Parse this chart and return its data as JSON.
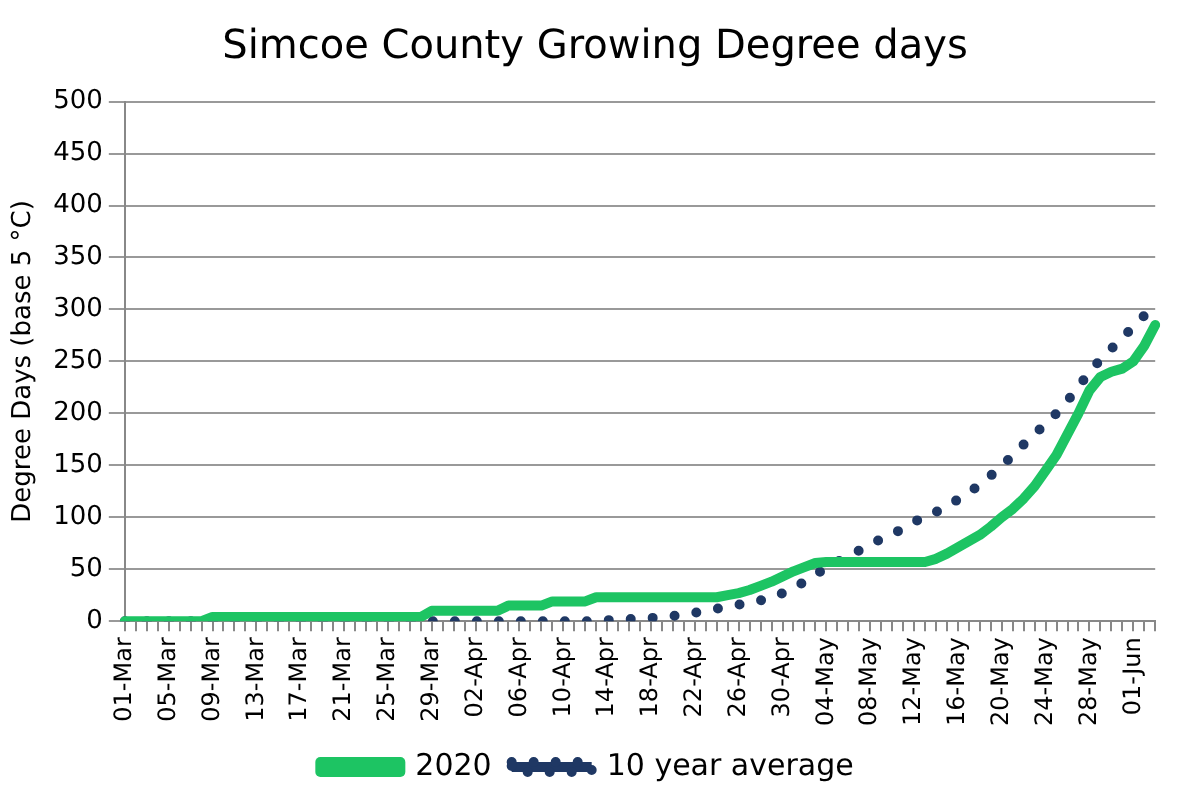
{
  "chart_data": {
    "type": "line",
    "title": "Simcoe County Growing Degree days",
    "ylabel": "Degree Days (base 5 °C)",
    "categories": [
      "01-Mar",
      null,
      null,
      null,
      "05-Mar",
      null,
      null,
      null,
      "09-Mar",
      null,
      null,
      null,
      "13-Mar",
      null,
      null,
      null,
      "17-Mar",
      null,
      null,
      null,
      "21-Mar",
      null,
      null,
      null,
      "25-Mar",
      null,
      null,
      null,
      "29-Mar",
      null,
      null,
      null,
      "02-Apr",
      null,
      null,
      null,
      "06-Apr",
      null,
      null,
      null,
      "10-Apr",
      null,
      null,
      null,
      "14-Apr",
      null,
      null,
      null,
      "18-Apr",
      null,
      null,
      null,
      "22-Apr",
      null,
      null,
      null,
      "26-Apr",
      null,
      null,
      null,
      "30-Apr",
      null,
      null,
      null,
      "04-May",
      null,
      null,
      null,
      "08-May",
      null,
      null,
      null,
      "12-May",
      null,
      null,
      null,
      "16-May",
      null,
      null,
      null,
      "20-May",
      null,
      null,
      null,
      "24-May",
      null,
      null,
      null,
      "28-May",
      null,
      null,
      null,
      "01-Jun",
      null,
      null
    ],
    "series": [
      {
        "name": "2020",
        "color": "#1dc463",
        "line_style": "solid",
        "values": [
          0,
          0,
          0,
          0,
          0,
          0,
          0,
          0,
          4,
          4,
          4,
          4,
          4,
          4,
          4,
          4,
          4,
          4,
          4,
          4,
          4,
          4,
          4,
          4,
          4,
          4,
          4,
          4,
          10,
          10,
          10,
          10,
          10,
          10,
          10,
          15,
          15,
          15,
          15,
          19,
          19,
          19,
          19,
          23,
          23,
          23,
          23,
          23,
          23,
          23,
          23,
          23,
          23,
          23,
          23,
          25,
          27,
          30,
          34,
          38,
          43,
          48,
          52,
          56,
          57,
          57,
          57,
          57,
          57,
          57,
          57,
          57,
          57,
          57,
          60,
          65,
          71,
          77,
          83,
          91,
          100,
          108,
          118,
          130,
          145,
          160,
          180,
          200,
          222,
          235,
          240,
          243,
          250,
          265,
          285
        ]
      },
      {
        "name": "10 year average",
        "color": "#1f3864",
        "line_style": "dotted",
        "values": [
          0,
          0,
          0,
          0,
          0,
          0,
          0,
          0,
          0,
          0,
          0,
          0,
          0,
          0,
          0,
          0,
          0,
          0,
          0,
          0,
          0,
          0,
          0,
          0,
          0,
          0,
          0,
          0,
          0,
          0,
          0,
          0,
          0,
          0,
          0,
          0,
          0,
          0,
          0,
          0,
          0,
          0,
          0,
          0,
          1,
          1,
          2,
          2,
          3,
          4,
          5,
          6,
          8,
          10,
          12,
          14,
          16,
          17,
          20,
          22,
          27,
          32,
          38,
          45,
          51,
          57,
          63,
          68,
          74,
          79,
          84,
          89,
          95,
          102,
          105,
          111,
          117,
          124,
          131,
          140,
          150,
          159,
          170,
          180,
          190,
          200,
          212,
          226,
          239,
          252,
          262,
          273,
          283,
          294,
          300
        ]
      }
    ],
    "ylim": [
      0,
      500
    ],
    "yticks": [
      0,
      50,
      100,
      150,
      200,
      250,
      300,
      350,
      400,
      450,
      500
    ],
    "grid": "y",
    "legend": "bottom",
    "marker": "none"
  }
}
